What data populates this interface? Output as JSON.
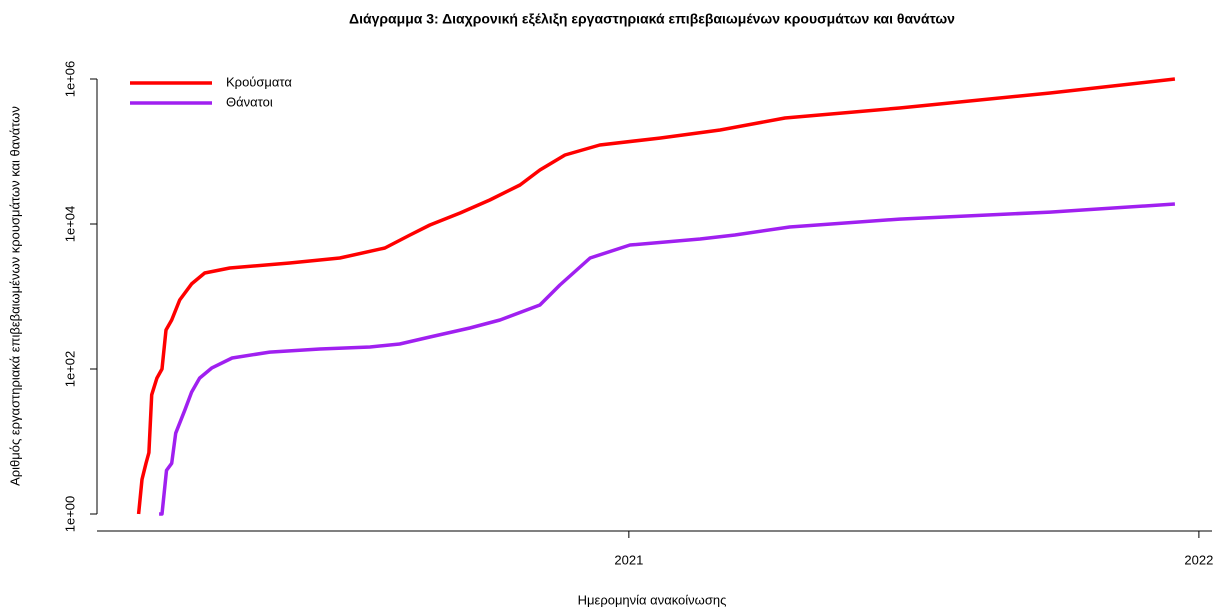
{
  "chart_data": {
    "type": "line",
    "title": "Διάγραμμα 3: Διαχρονική εξέλιξη εργαστηριακά επιβεβαιωμένων κρουσμάτων και θανάτων",
    "x_label": "Ημερομηνία ανακοίνωσης",
    "y_label": "Αριθμός εργαστηριακά επιβεβαιωμένων κρουσμάτων και θανάτων",
    "xlim": [
      2020.067,
      2022.023
    ],
    "xticks": [
      2021,
      2022
    ],
    "ylim": [
      1,
      1000000
    ],
    "log_y": true,
    "yticks": [
      {
        "value": 1,
        "label": "1e+00"
      },
      {
        "value": 100,
        "label": "1e+02"
      },
      {
        "value": 10000,
        "label": "1e+04"
      },
      {
        "value": 1000000,
        "label": "1e+06"
      }
    ],
    "legend": "top-left",
    "series": [
      {
        "name": "Κρούσματα",
        "color": "#ff0000",
        "x": [
          2020.14,
          2020.146,
          2020.153,
          2020.158,
          2020.163,
          2020.172,
          2020.181,
          2020.188,
          2020.198,
          2020.212,
          2020.233,
          2020.256,
          2020.3,
          2020.405,
          2020.493,
          2020.572,
          2020.616,
          2020.651,
          2020.704,
          2020.756,
          2020.809,
          2020.844,
          2020.888,
          2020.949,
          2021.054,
          2021.16,
          2021.274,
          2021.475,
          2021.739,
          2021.958
        ],
        "values": [
          1,
          3,
          5,
          7,
          44,
          75,
          100,
          345,
          474,
          895,
          1490,
          2110,
          2470,
          2900,
          3400,
          4670,
          7050,
          9690,
          14200,
          21400,
          34500,
          55600,
          89500,
          123000,
          153000,
          198000,
          290000,
          398000,
          641000,
          1000000
        ]
      },
      {
        "name": "Θάνατοι",
        "color": "#a020f0",
        "x": [
          2020.176,
          2020.181,
          2020.189,
          2020.198,
          2020.205,
          2020.221,
          2020.233,
          2020.247,
          2020.268,
          2020.304,
          2020.37,
          2020.458,
          2020.546,
          2020.598,
          2020.651,
          2020.721,
          2020.774,
          2020.844,
          2020.879,
          2020.932,
          2021.002,
          2021.125,
          2021.186,
          2021.282,
          2021.475,
          2021.739,
          2021.958
        ],
        "values": [
          1,
          1,
          4,
          5,
          13,
          27,
          48,
          75,
          103,
          142,
          171,
          189,
          201,
          221,
          276,
          368,
          474,
          763,
          1440,
          3400,
          5130,
          6210,
          7050,
          9100,
          11700,
          14600,
          18900
        ]
      }
    ]
  }
}
